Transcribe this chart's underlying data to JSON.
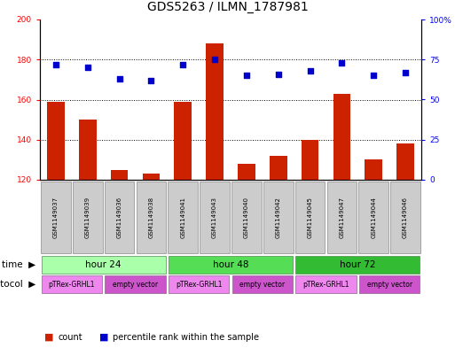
{
  "title": "GDS5263 / ILMN_1787981",
  "samples": [
    "GSM1149037",
    "GSM1149039",
    "GSM1149036",
    "GSM1149038",
    "GSM1149041",
    "GSM1149043",
    "GSM1149040",
    "GSM1149042",
    "GSM1149045",
    "GSM1149047",
    "GSM1149044",
    "GSM1149046"
  ],
  "counts": [
    159,
    150,
    125,
    123,
    159,
    188,
    128,
    132,
    140,
    163,
    130,
    138
  ],
  "percentiles": [
    72,
    70,
    63,
    62,
    72,
    75,
    65,
    66,
    68,
    73,
    65,
    67
  ],
  "ylim_left": [
    120,
    200
  ],
  "ylim_right": [
    0,
    100
  ],
  "yticks_left": [
    120,
    140,
    160,
    180,
    200
  ],
  "yticks_right": [
    0,
    25,
    50,
    75,
    100
  ],
  "time_groups": [
    {
      "label": "hour 24",
      "start": 0,
      "end": 4,
      "color": "#aaffaa"
    },
    {
      "label": "hour 48",
      "start": 4,
      "end": 8,
      "color": "#55dd55"
    },
    {
      "label": "hour 72",
      "start": 8,
      "end": 12,
      "color": "#33bb33"
    }
  ],
  "protocol_groups": [
    {
      "label": "pTRex-GRHL1",
      "start": 0,
      "end": 2,
      "color": "#ee88ee"
    },
    {
      "label": "empty vector",
      "start": 2,
      "end": 4,
      "color": "#cc55cc"
    },
    {
      "label": "pTRex-GRHL1",
      "start": 4,
      "end": 6,
      "color": "#ee88ee"
    },
    {
      "label": "empty vector",
      "start": 6,
      "end": 8,
      "color": "#cc55cc"
    },
    {
      "label": "pTRex-GRHL1",
      "start": 8,
      "end": 10,
      "color": "#ee88ee"
    },
    {
      "label": "empty vector",
      "start": 10,
      "end": 12,
      "color": "#cc55cc"
    }
  ],
  "bar_color": "#cc2200",
  "dot_color": "#0000cc",
  "bar_width": 0.55,
  "sample_bg_color": "#cccccc",
  "title_fontsize": 10,
  "tick_fontsize": 6.5,
  "label_fontsize": 7.5,
  "sample_fontsize": 5,
  "protocol_fontsize": 5.5
}
